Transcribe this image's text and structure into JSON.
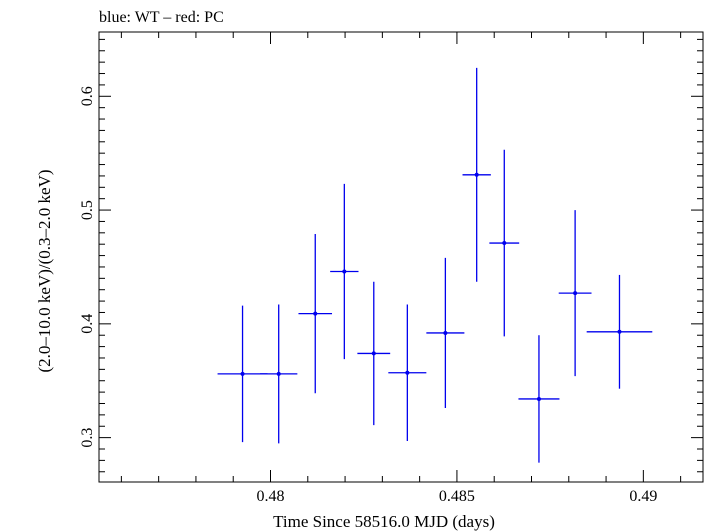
{
  "chart_data": {
    "type": "scatter",
    "title": "blue: WT – red: PC",
    "xlabel": "Time Since 58516.0 MJD (days)",
    "ylabel": "(2.0–10.0 keV)/(0.3–2.0 keV)",
    "xlim": [
      0.4754,
      0.4916
    ],
    "ylim": [
      0.261,
      0.6565
    ],
    "x_ticks": [
      {
        "value": 0.48,
        "label": "0.48"
      },
      {
        "value": 0.485,
        "label": "0.485"
      },
      {
        "value": 0.49,
        "label": "0.49"
      }
    ],
    "y_ticks": [
      {
        "value": 0.3,
        "label": "0.3"
      },
      {
        "value": 0.4,
        "label": "0.4"
      },
      {
        "value": 0.5,
        "label": "0.5"
      },
      {
        "value": 0.6,
        "label": "0.6"
      }
    ],
    "series": [
      {
        "name": "WT",
        "color": "#0000ee",
        "points": [
          {
            "x": 0.47925,
            "xerr": 0.00067,
            "y": 0.356,
            "yerr_low": 0.06,
            "yerr_high": 0.06
          },
          {
            "x": 0.48022,
            "xerr": 0.0005,
            "y": 0.356,
            "yerr_low": 0.061,
            "yerr_high": 0.061
          },
          {
            "x": 0.4812,
            "xerr": 0.00045,
            "y": 0.409,
            "yerr_low": 0.07,
            "yerr_high": 0.07
          },
          {
            "x": 0.48198,
            "xerr": 0.00038,
            "y": 0.446,
            "yerr_low": 0.077,
            "yerr_high": 0.077
          },
          {
            "x": 0.48277,
            "xerr": 0.00044,
            "y": 0.374,
            "yerr_low": 0.063,
            "yerr_high": 0.063
          },
          {
            "x": 0.48367,
            "xerr": 0.00051,
            "y": 0.357,
            "yerr_low": 0.06,
            "yerr_high": 0.06
          },
          {
            "x": 0.48469,
            "xerr": 0.00051,
            "y": 0.392,
            "yerr_low": 0.066,
            "yerr_high": 0.066
          },
          {
            "x": 0.48553,
            "xerr": 0.00038,
            "y": 0.531,
            "yerr_low": 0.094,
            "yerr_high": 0.094
          },
          {
            "x": 0.48627,
            "xerr": 0.0004,
            "y": 0.471,
            "yerr_low": 0.082,
            "yerr_high": 0.082
          },
          {
            "x": 0.4872,
            "xerr": 0.00055,
            "y": 0.334,
            "yerr_low": 0.056,
            "yerr_high": 0.056
          },
          {
            "x": 0.48817,
            "xerr": 0.00044,
            "y": 0.427,
            "yerr_low": 0.073,
            "yerr_high": 0.073
          },
          {
            "x": 0.48936,
            "xerr": 0.00088,
            "y": 0.393,
            "yerr_low": 0.05,
            "yerr_high": 0.05
          }
        ]
      }
    ]
  }
}
